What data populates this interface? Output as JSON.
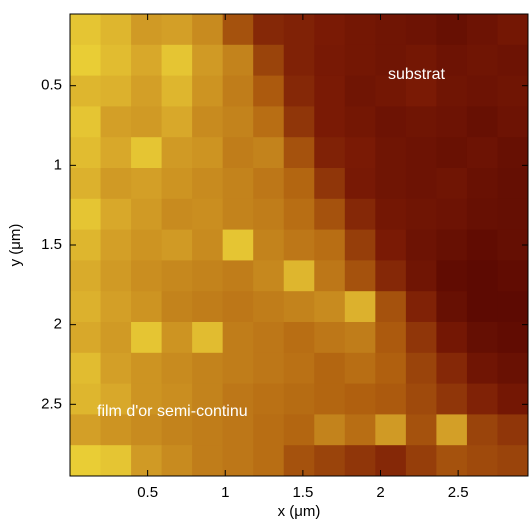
{
  "chart_data": {
    "type": "heatmap",
    "xlabel": "x (μm)",
    "ylabel": "y (μm)",
    "xlim": [
      0,
      2.95
    ],
    "ylim": [
      0.05,
      2.95
    ],
    "xticks": [
      0.5,
      1,
      1.5,
      2,
      2.5
    ],
    "yticks": [
      0.5,
      1,
      1.5,
      2,
      2.5
    ],
    "y_reversed": true,
    "colormap": [
      [
        0,
        "#4a0000"
      ],
      [
        25,
        "#7a1a05"
      ],
      [
        50,
        "#b0600f"
      ],
      [
        75,
        "#d8a82a"
      ],
      [
        100,
        "#f8f040"
      ]
    ],
    "annotations": [
      "substrat",
      "film d'or semi-continu"
    ],
    "z": [
      [
        85,
        80,
        70,
        72,
        65,
        45,
        30,
        28,
        25,
        22,
        20,
        18,
        15,
        18,
        22
      ],
      [
        88,
        82,
        75,
        85,
        70,
        62,
        40,
        28,
        24,
        22,
        20,
        22,
        18,
        20,
        18
      ],
      [
        80,
        78,
        72,
        80,
        68,
        60,
        48,
        30,
        25,
        20,
        22,
        25,
        20,
        18,
        20
      ],
      [
        85,
        72,
        70,
        75,
        65,
        62,
        55,
        35,
        25,
        22,
        18,
        20,
        18,
        15,
        18
      ],
      [
        82,
        75,
        85,
        70,
        68,
        60,
        62,
        45,
        28,
        25,
        20,
        18,
        16,
        18,
        15
      ],
      [
        78,
        70,
        72,
        68,
        65,
        62,
        58,
        52,
        35,
        24,
        20,
        18,
        20,
        16,
        14
      ],
      [
        85,
        75,
        70,
        65,
        66,
        62,
        60,
        55,
        45,
        30,
        22,
        20,
        18,
        15,
        14
      ],
      [
        80,
        72,
        68,
        70,
        65,
        85,
        62,
        58,
        55,
        38,
        25,
        18,
        15,
        12,
        14
      ],
      [
        76,
        70,
        66,
        64,
        62,
        60,
        64,
        80,
        58,
        45,
        30,
        20,
        12,
        10,
        12
      ],
      [
        78,
        72,
        68,
        62,
        60,
        58,
        60,
        62,
        65,
        78,
        45,
        28,
        15,
        10,
        10
      ],
      [
        75,
        70,
        85,
        68,
        82,
        60,
        58,
        55,
        58,
        60,
        48,
        35,
        22,
        14,
        12
      ],
      [
        82,
        72,
        68,
        65,
        62,
        60,
        58,
        56,
        52,
        55,
        50,
        40,
        30,
        20,
        16
      ],
      [
        80,
        75,
        68,
        66,
        62,
        58,
        56,
        54,
        52,
        50,
        48,
        42,
        35,
        28,
        22
      ],
      [
        72,
        68,
        65,
        62,
        60,
        58,
        55,
        52,
        62,
        55,
        70,
        45,
        72,
        40,
        35
      ],
      [
        88,
        85,
        70,
        65,
        60,
        58,
        55,
        45,
        40,
        35,
        30,
        38,
        45,
        42,
        40
      ]
    ]
  }
}
